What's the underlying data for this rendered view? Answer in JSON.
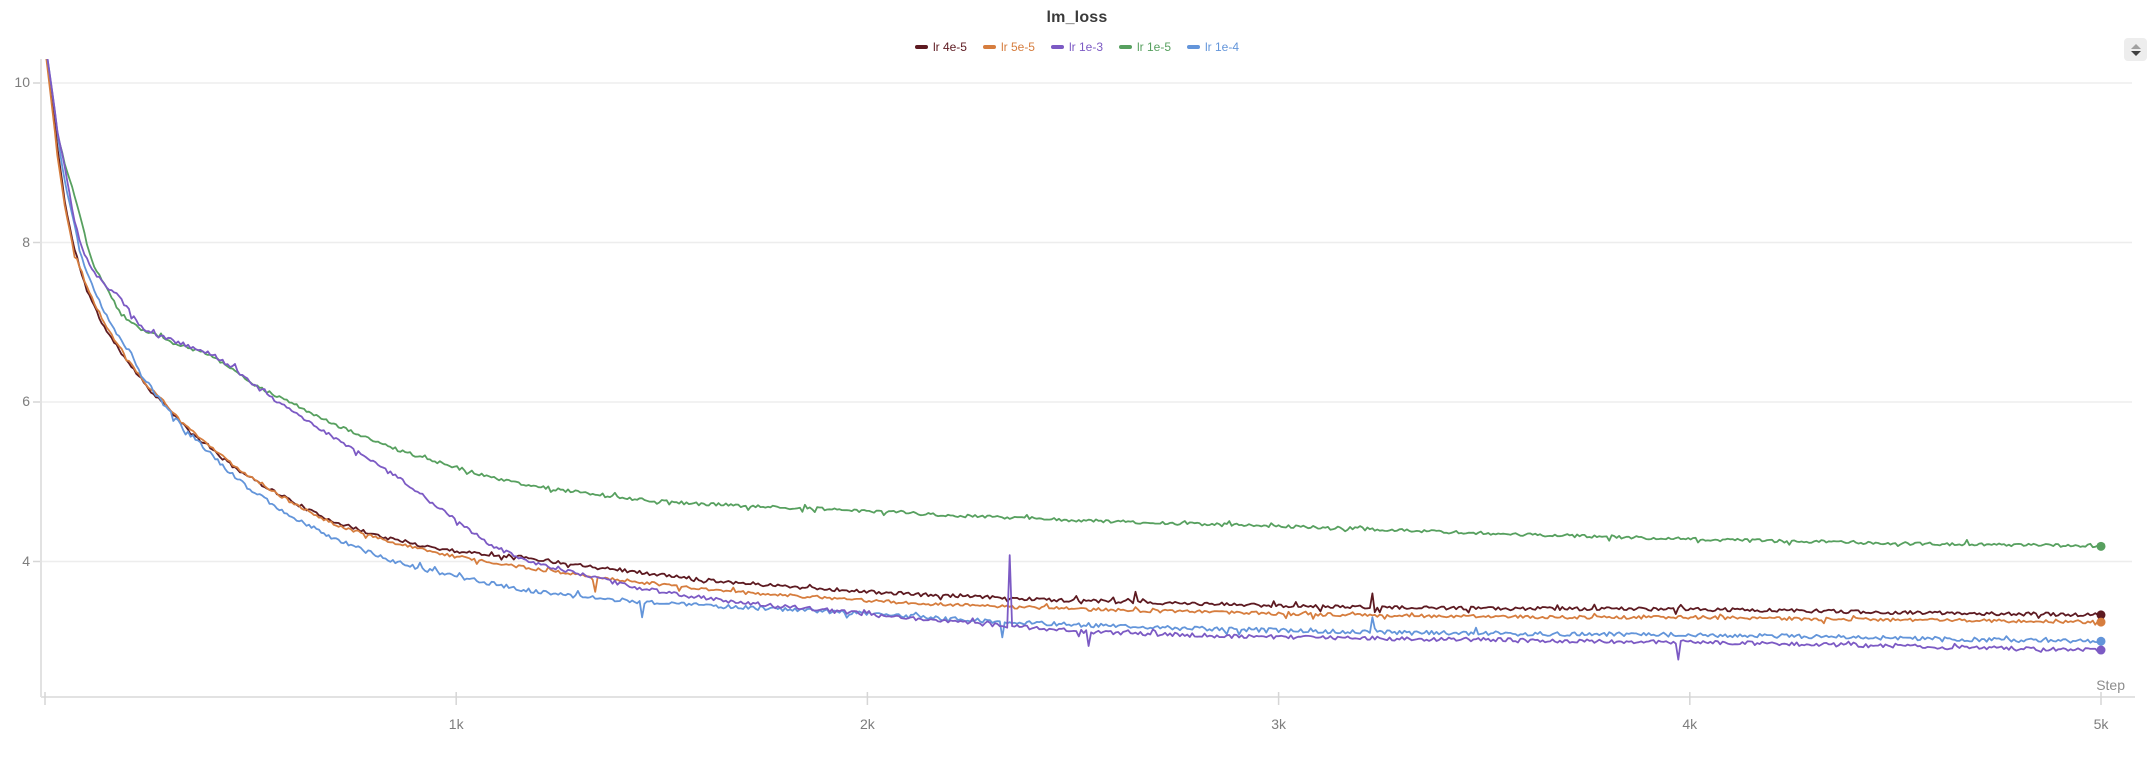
{
  "chart": {
    "title": "lm_loss",
    "controls": {
      "sort_button": "reorder-panel"
    },
    "y_axis": {
      "tick_labels": [
        "10",
        "8",
        "6",
        "4"
      ],
      "tick_values": [
        10,
        8,
        6,
        4
      ]
    },
    "x_axis": {
      "title": "Step",
      "tick_labels": [
        "1k",
        "2k",
        "3k",
        "4k",
        "5k"
      ],
      "tick_values": [
        1000,
        2000,
        3000,
        4000,
        5000
      ]
    }
  },
  "chart_data": {
    "type": "line",
    "title": "lm_loss",
    "xlabel": "Step",
    "ylabel": "",
    "x_range": [
      0,
      5000
    ],
    "y_view_range": [
      2.3,
      10.3
    ],
    "y_ticks": [
      4,
      6,
      8,
      10
    ],
    "grid": "horizontal",
    "legend_position": "top-center",
    "colors": {
      "grid": "#ededed",
      "spine": "#e2e2e2",
      "tick": "#d6d6d6",
      "axis_text": "#7d7d7d",
      "title_text": "#3a3a3a"
    },
    "series": [
      {
        "name": "lr 1e-5",
        "color": "#57a05f",
        "seed": 44,
        "noise": 0.02,
        "end_value": 4.19,
        "keypoints": [
          [
            0,
            10.45
          ],
          [
            15,
            9.9
          ],
          [
            30,
            9.35
          ],
          [
            50,
            8.95
          ],
          [
            68,
            8.66
          ],
          [
            90,
            8.25
          ],
          [
            110,
            7.82
          ],
          [
            130,
            7.6
          ],
          [
            155,
            7.38
          ],
          [
            182,
            7.12
          ],
          [
            210,
            6.99
          ],
          [
            231,
            6.92
          ],
          [
            270,
            6.84
          ],
          [
            311,
            6.74
          ],
          [
            360,
            6.66
          ],
          [
            409,
            6.57
          ],
          [
            460,
            6.39
          ],
          [
            510,
            6.22
          ],
          [
            555,
            6.09
          ],
          [
            610,
            5.96
          ],
          [
            660,
            5.83
          ],
          [
            718,
            5.69
          ],
          [
            790,
            5.53
          ],
          [
            864,
            5.39
          ],
          [
            940,
            5.27
          ],
          [
            1000,
            5.18
          ],
          [
            1080,
            5.06
          ],
          [
            1156,
            4.98
          ],
          [
            1240,
            4.91
          ],
          [
            1319,
            4.85
          ],
          [
            1440,
            4.78
          ],
          [
            1562,
            4.73
          ],
          [
            1700,
            4.7
          ],
          [
            1886,
            4.66
          ],
          [
            2050,
            4.62
          ],
          [
            2200,
            4.58
          ],
          [
            2400,
            4.54
          ],
          [
            2600,
            4.5
          ],
          [
            2800,
            4.47
          ],
          [
            3000,
            4.44
          ],
          [
            3200,
            4.41
          ],
          [
            3400,
            4.37
          ],
          [
            3600,
            4.34
          ],
          [
            3800,
            4.31
          ],
          [
            4000,
            4.28
          ],
          [
            4200,
            4.26
          ],
          [
            4400,
            4.24
          ],
          [
            4600,
            4.22
          ],
          [
            4800,
            4.21
          ],
          [
            5000,
            4.19
          ]
        ],
        "spikes": []
      },
      {
        "name": "lr 4e-5",
        "color": "#5d1a21",
        "seed": 11,
        "noise": 0.022,
        "end_value": 3.33,
        "keypoints": [
          [
            0,
            10.45
          ],
          [
            15,
            9.9
          ],
          [
            30,
            9.2
          ],
          [
            50,
            8.45
          ],
          [
            70,
            7.95
          ],
          [
            100,
            7.42
          ],
          [
            130,
            7.08
          ],
          [
            160,
            6.8
          ],
          [
            200,
            6.52
          ],
          [
            250,
            6.18
          ],
          [
            300,
            5.92
          ],
          [
            350,
            5.63
          ],
          [
            400,
            5.43
          ],
          [
            450,
            5.22
          ],
          [
            500,
            5.05
          ],
          [
            550,
            4.9
          ],
          [
            600,
            4.76
          ],
          [
            650,
            4.62
          ],
          [
            700,
            4.51
          ],
          [
            750,
            4.42
          ],
          [
            800,
            4.34
          ],
          [
            850,
            4.27
          ],
          [
            900,
            4.22
          ],
          [
            950,
            4.17
          ],
          [
            1000,
            4.13
          ],
          [
            1080,
            4.09
          ],
          [
            1156,
            4.06
          ],
          [
            1250,
            3.99
          ],
          [
            1350,
            3.93
          ],
          [
            1450,
            3.86
          ],
          [
            1550,
            3.8
          ],
          [
            1650,
            3.75
          ],
          [
            1750,
            3.71
          ],
          [
            1886,
            3.66
          ],
          [
            2000,
            3.62
          ],
          [
            2150,
            3.58
          ],
          [
            2350,
            3.54
          ],
          [
            2500,
            3.51
          ],
          [
            2700,
            3.48
          ],
          [
            2900,
            3.46
          ],
          [
            3053,
            3.44
          ],
          [
            3300,
            3.42
          ],
          [
            3500,
            3.41
          ],
          [
            3750,
            3.41
          ],
          [
            4026,
            3.4
          ],
          [
            4300,
            3.38
          ],
          [
            4500,
            3.36
          ],
          [
            4700,
            3.35
          ],
          [
            4850,
            3.34
          ],
          [
            5000,
            3.33
          ]
        ],
        "spikes": [
          [
            2650,
            3.62
          ],
          [
            3230,
            3.6
          ]
        ]
      },
      {
        "name": "lr 5e-5",
        "color": "#d67d3e",
        "seed": 22,
        "noise": 0.02,
        "end_value": 3.24,
        "keypoints": [
          [
            0,
            10.45
          ],
          [
            15,
            9.8
          ],
          [
            30,
            9.1
          ],
          [
            50,
            8.4
          ],
          [
            70,
            7.9
          ],
          [
            100,
            7.48
          ],
          [
            130,
            7.14
          ],
          [
            160,
            6.85
          ],
          [
            200,
            6.55
          ],
          [
            250,
            6.2
          ],
          [
            300,
            5.94
          ],
          [
            350,
            5.66
          ],
          [
            400,
            5.45
          ],
          [
            450,
            5.24
          ],
          [
            500,
            5.06
          ],
          [
            550,
            4.9
          ],
          [
            600,
            4.74
          ],
          [
            650,
            4.6
          ],
          [
            700,
            4.48
          ],
          [
            750,
            4.39
          ],
          [
            800,
            4.31
          ],
          [
            850,
            4.23
          ],
          [
            900,
            4.17
          ],
          [
            950,
            4.11
          ],
          [
            1000,
            4.06
          ],
          [
            1080,
            4.0
          ],
          [
            1156,
            3.93
          ],
          [
            1250,
            3.87
          ],
          [
            1350,
            3.8
          ],
          [
            1450,
            3.74
          ],
          [
            1550,
            3.68
          ],
          [
            1650,
            3.63
          ],
          [
            1750,
            3.59
          ],
          [
            1886,
            3.55
          ],
          [
            2000,
            3.51
          ],
          [
            2150,
            3.47
          ],
          [
            2350,
            3.43
          ],
          [
            2500,
            3.41
          ],
          [
            2700,
            3.38
          ],
          [
            2900,
            3.36
          ],
          [
            3053,
            3.34
          ],
          [
            3300,
            3.32
          ],
          [
            3500,
            3.31
          ],
          [
            3750,
            3.3
          ],
          [
            4026,
            3.3
          ],
          [
            4300,
            3.28
          ],
          [
            4500,
            3.27
          ],
          [
            4700,
            3.26
          ],
          [
            4850,
            3.25
          ],
          [
            5000,
            3.24
          ]
        ],
        "spikes": [
          [
            1340,
            3.62
          ]
        ]
      },
      {
        "name": "lr 1e-4",
        "color": "#6395da",
        "seed": 55,
        "noise": 0.026,
        "end_value": 3.0,
        "keypoints": [
          [
            0,
            10.5
          ],
          [
            12,
            10.1
          ],
          [
            25,
            9.6
          ],
          [
            40,
            9.0
          ],
          [
            55,
            8.6
          ],
          [
            68,
            8.32
          ],
          [
            90,
            7.8
          ],
          [
            110,
            7.52
          ],
          [
            130,
            7.28
          ],
          [
            151,
            7.07
          ],
          [
            180,
            6.82
          ],
          [
            210,
            6.6
          ],
          [
            231,
            6.36
          ],
          [
            270,
            6.1
          ],
          [
            300,
            5.9
          ],
          [
            340,
            5.66
          ],
          [
            380,
            5.46
          ],
          [
            420,
            5.26
          ],
          [
            460,
            5.07
          ],
          [
            500,
            4.9
          ],
          [
            550,
            4.73
          ],
          [
            600,
            4.57
          ],
          [
            650,
            4.43
          ],
          [
            700,
            4.3
          ],
          [
            750,
            4.19
          ],
          [
            800,
            4.09
          ],
          [
            850,
            4.0
          ],
          [
            900,
            3.93
          ],
          [
            950,
            3.87
          ],
          [
            1000,
            3.82
          ],
          [
            1080,
            3.73
          ],
          [
            1156,
            3.65
          ],
          [
            1240,
            3.59
          ],
          [
            1319,
            3.55
          ],
          [
            1440,
            3.5
          ],
          [
            1562,
            3.46
          ],
          [
            1700,
            3.42
          ],
          [
            1886,
            3.38
          ],
          [
            2050,
            3.33
          ],
          [
            2200,
            3.28
          ],
          [
            2350,
            3.24
          ],
          [
            2535,
            3.2
          ],
          [
            2700,
            3.17
          ],
          [
            2900,
            3.15
          ],
          [
            3053,
            3.13
          ],
          [
            3300,
            3.11
          ],
          [
            3500,
            3.1
          ],
          [
            3750,
            3.09
          ],
          [
            4026,
            3.08
          ],
          [
            4300,
            3.06
          ],
          [
            4500,
            3.04
          ],
          [
            4700,
            3.02
          ],
          [
            4850,
            3.01
          ],
          [
            5000,
            3.0
          ]
        ],
        "spikes": [
          [
            1450,
            3.3
          ],
          [
            2330,
            3.05
          ],
          [
            3228,
            3.3
          ]
        ]
      },
      {
        "name": "lr 1e-3",
        "color": "#7c5ac4",
        "seed": 33,
        "noise": 0.024,
        "end_value": 2.89,
        "keypoints": [
          [
            0,
            10.5
          ],
          [
            15,
            10.0
          ],
          [
            30,
            9.4
          ],
          [
            50,
            8.9
          ],
          [
            70,
            8.3
          ],
          [
            90,
            7.92
          ],
          [
            110,
            7.7
          ],
          [
            130,
            7.56
          ],
          [
            155,
            7.43
          ],
          [
            175,
            7.35
          ],
          [
            200,
            7.18
          ],
          [
            231,
            6.95
          ],
          [
            270,
            6.84
          ],
          [
            311,
            6.77
          ],
          [
            360,
            6.68
          ],
          [
            409,
            6.59
          ],
          [
            460,
            6.42
          ],
          [
            510,
            6.21
          ],
          [
            555,
            6.04
          ],
          [
            610,
            5.86
          ],
          [
            660,
            5.69
          ],
          [
            718,
            5.51
          ],
          [
            790,
            5.27
          ],
          [
            864,
            5.03
          ],
          [
            930,
            4.78
          ],
          [
            1000,
            4.52
          ],
          [
            1080,
            4.22
          ],
          [
            1156,
            4.03
          ],
          [
            1240,
            3.91
          ],
          [
            1319,
            3.82
          ],
          [
            1440,
            3.67
          ],
          [
            1562,
            3.57
          ],
          [
            1700,
            3.48
          ],
          [
            1886,
            3.4
          ],
          [
            2050,
            3.31
          ],
          [
            2200,
            3.25
          ],
          [
            2345,
            3.19
          ],
          [
            2535,
            3.12
          ],
          [
            2700,
            3.09
          ],
          [
            2900,
            3.06
          ],
          [
            3053,
            3.05
          ],
          [
            3300,
            3.03
          ],
          [
            3500,
            3.02
          ],
          [
            3750,
            3.0
          ],
          [
            4026,
            2.99
          ],
          [
            4300,
            2.96
          ],
          [
            4500,
            2.94
          ],
          [
            4700,
            2.92
          ],
          [
            4850,
            2.9
          ],
          [
            5000,
            2.89
          ]
        ],
        "spikes": [
          [
            2345,
            4.08
          ],
          [
            2540,
            2.94
          ],
          [
            3970,
            2.77
          ]
        ]
      }
    ],
    "legend_order": [
      1,
      2,
      4,
      0,
      3
    ]
  }
}
